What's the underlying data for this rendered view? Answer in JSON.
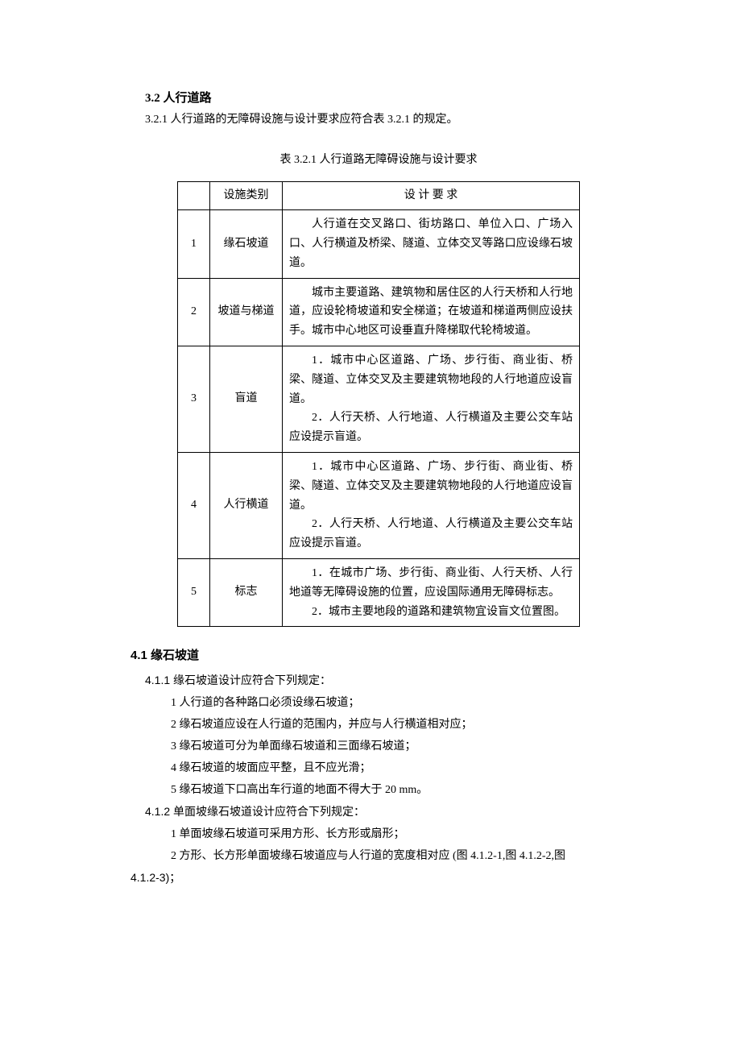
{
  "section32": {
    "title": "3.2  人行道路",
    "intro": "3.2.1  人行道路的无障碍设施与设计要求应符合表 3.2.1 的规定。",
    "tableCaption": "表 3.2.1  人行道路无障碍设施与设计要求",
    "headers": {
      "blank": "",
      "type": "设施类别",
      "req": "设  计  要  求"
    },
    "rows": [
      {
        "num": "1",
        "type": "缘石坡道",
        "req": "人行道在交叉路口、街坊路口、单位入口、广场入口、人行横道及桥梁、隧道、立体交叉等路口应设缘石坡道。"
      },
      {
        "num": "2",
        "type": "坡道与梯道",
        "req": "城市主要道路、建筑物和居住区的人行天桥和人行地道，应设轮椅坡道和安全梯道；在坡道和梯道两侧应设扶手。城市中心地区可设垂直升降梯取代轮椅坡道。"
      },
      {
        "num": "3",
        "type": "盲道",
        "req1": "1．城市中心区道路、广场、步行街、商业街、桥梁、隧道、立体交叉及主要建筑物地段的人行地道应设盲道。",
        "req2": "2．人行天桥、人行地道、人行横道及主要公交车站应设提示盲道。"
      },
      {
        "num": "4",
        "type": "人行横道",
        "req1": "1．城市中心区道路、广场、步行街、商业街、桥梁、隧道、立体交叉及主要建筑物地段的人行地道应设盲道。",
        "req2": "2．人行天桥、人行地道、人行横道及主要公交车站应设提示盲道。"
      },
      {
        "num": "5",
        "type": "标志",
        "req1": "1．在城市广场、步行街、商业街、人行天桥、人行地道等无障碍设施的位置，应设国际通用无障碍标志。",
        "req2": "2．城市主要地段的道路和建筑物宜设盲文位置图。"
      }
    ]
  },
  "section41": {
    "title": "4.1  缘石坡道",
    "item411": {
      "lead": "4.1.1  缘石坡道设计应符合下列规定：",
      "subs": [
        "1  人行道的各种路口必须设缘石坡道；",
        "2  缘石坡道应设在人行道的范围内，并应与人行横道相对应；",
        "3  缘石坡道可分为单面缘石坡道和三面缘石坡道；",
        "4  缘石坡道的坡面应平整，且不应光滑；",
        "5  缘石坡道下口高出车行道的地面不得大于 20 mm。"
      ]
    },
    "item412": {
      "lead": "4.1.2  单面坡缘石坡道设计应符合下列规定：",
      "subs": [
        "1  单面坡缘石坡道可采用方形、长方形或扇形；",
        "2  方形、长方形单面坡缘石坡道应与人行道的宽度相对应  (图 4.1.2-1,图 4.1.2-2,图"
      ],
      "tail": "4.1.2-3)；"
    }
  }
}
